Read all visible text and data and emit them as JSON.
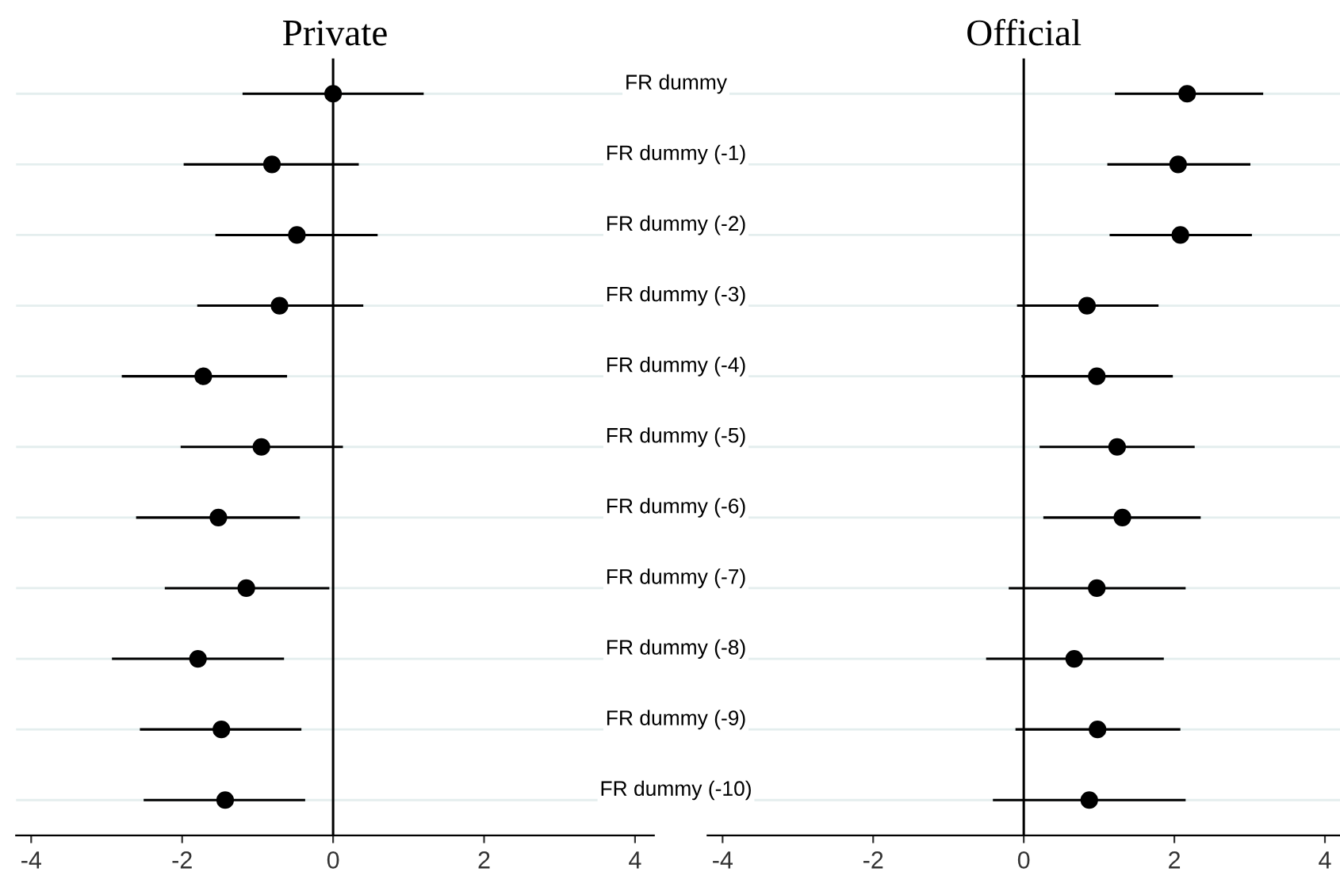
{
  "chart_data": [
    {
      "type": "scatter",
      "orientation": "horizontal",
      "title": "Private",
      "categories": [
        "FR dummy",
        "FR dummy (-1)",
        "FR dummy (-2)",
        "FR dummy (-3)",
        "FR dummy (-4)",
        "FR dummy (-5)",
        "FR dummy (-6)",
        "FR dummy (-7)",
        "FR dummy (-8)",
        "FR dummy (-9)",
        "FR dummy (-10)"
      ],
      "series": [
        {
          "color": "#000000",
          "values": [
            0,
            -0.81,
            -0.48,
            -0.71,
            -1.72,
            -0.95,
            -1.52,
            -1.15,
            -1.79,
            -1.48,
            -1.43
          ],
          "errors": [
            [
              -1.2,
              1.2
            ],
            [
              -1.98,
              0.34
            ],
            [
              -1.56,
              0.59
            ],
            [
              -1.8,
              0.4
            ],
            [
              -2.8,
              -0.61
            ],
            [
              -2.02,
              0.13
            ],
            [
              -2.61,
              -0.44
            ],
            [
              -2.23,
              -0.05
            ],
            [
              -2.93,
              -0.65
            ],
            [
              -2.56,
              -0.42
            ],
            [
              -2.51,
              -0.37
            ]
          ]
        }
      ],
      "xlim": [
        -4.2,
        4.25
      ],
      "xticks": [
        -4,
        -2,
        0,
        2,
        4
      ],
      "marker": "circle",
      "grid": "y",
      "ref_lines": [
        {
          "axis": "x",
          "value": 0,
          "color": "#000000"
        }
      ]
    },
    {
      "type": "scatter",
      "orientation": "horizontal",
      "title": "Official",
      "categories": [
        null,
        null,
        null,
        null,
        null,
        null,
        null,
        null,
        null,
        null,
        null
      ],
      "series": [
        {
          "color": "#000000",
          "values": [
            2.17,
            2.05,
            2.08,
            0.84,
            0.97,
            1.24,
            1.31,
            0.97,
            0.67,
            0.98,
            0.87
          ],
          "errors": [
            [
              1.21,
              3.18
            ],
            [
              1.11,
              3.01
            ],
            [
              1.14,
              3.03
            ],
            [
              -0.09,
              1.79
            ],
            [
              -0.03,
              1.98
            ],
            [
              0.21,
              2.27
            ],
            [
              0.26,
              2.35
            ],
            [
              -0.2,
              2.15
            ],
            [
              -0.5,
              1.86
            ],
            [
              -0.11,
              2.08
            ],
            [
              -0.41,
              2.15
            ]
          ]
        }
      ],
      "xlim": [
        -4.2,
        4.2
      ],
      "xticks": [
        -4,
        -2,
        0,
        2,
        4
      ],
      "marker": "circle",
      "grid": "y",
      "ref_lines": [
        {
          "axis": "x",
          "value": 0,
          "color": "#000000"
        }
      ]
    }
  ]
}
